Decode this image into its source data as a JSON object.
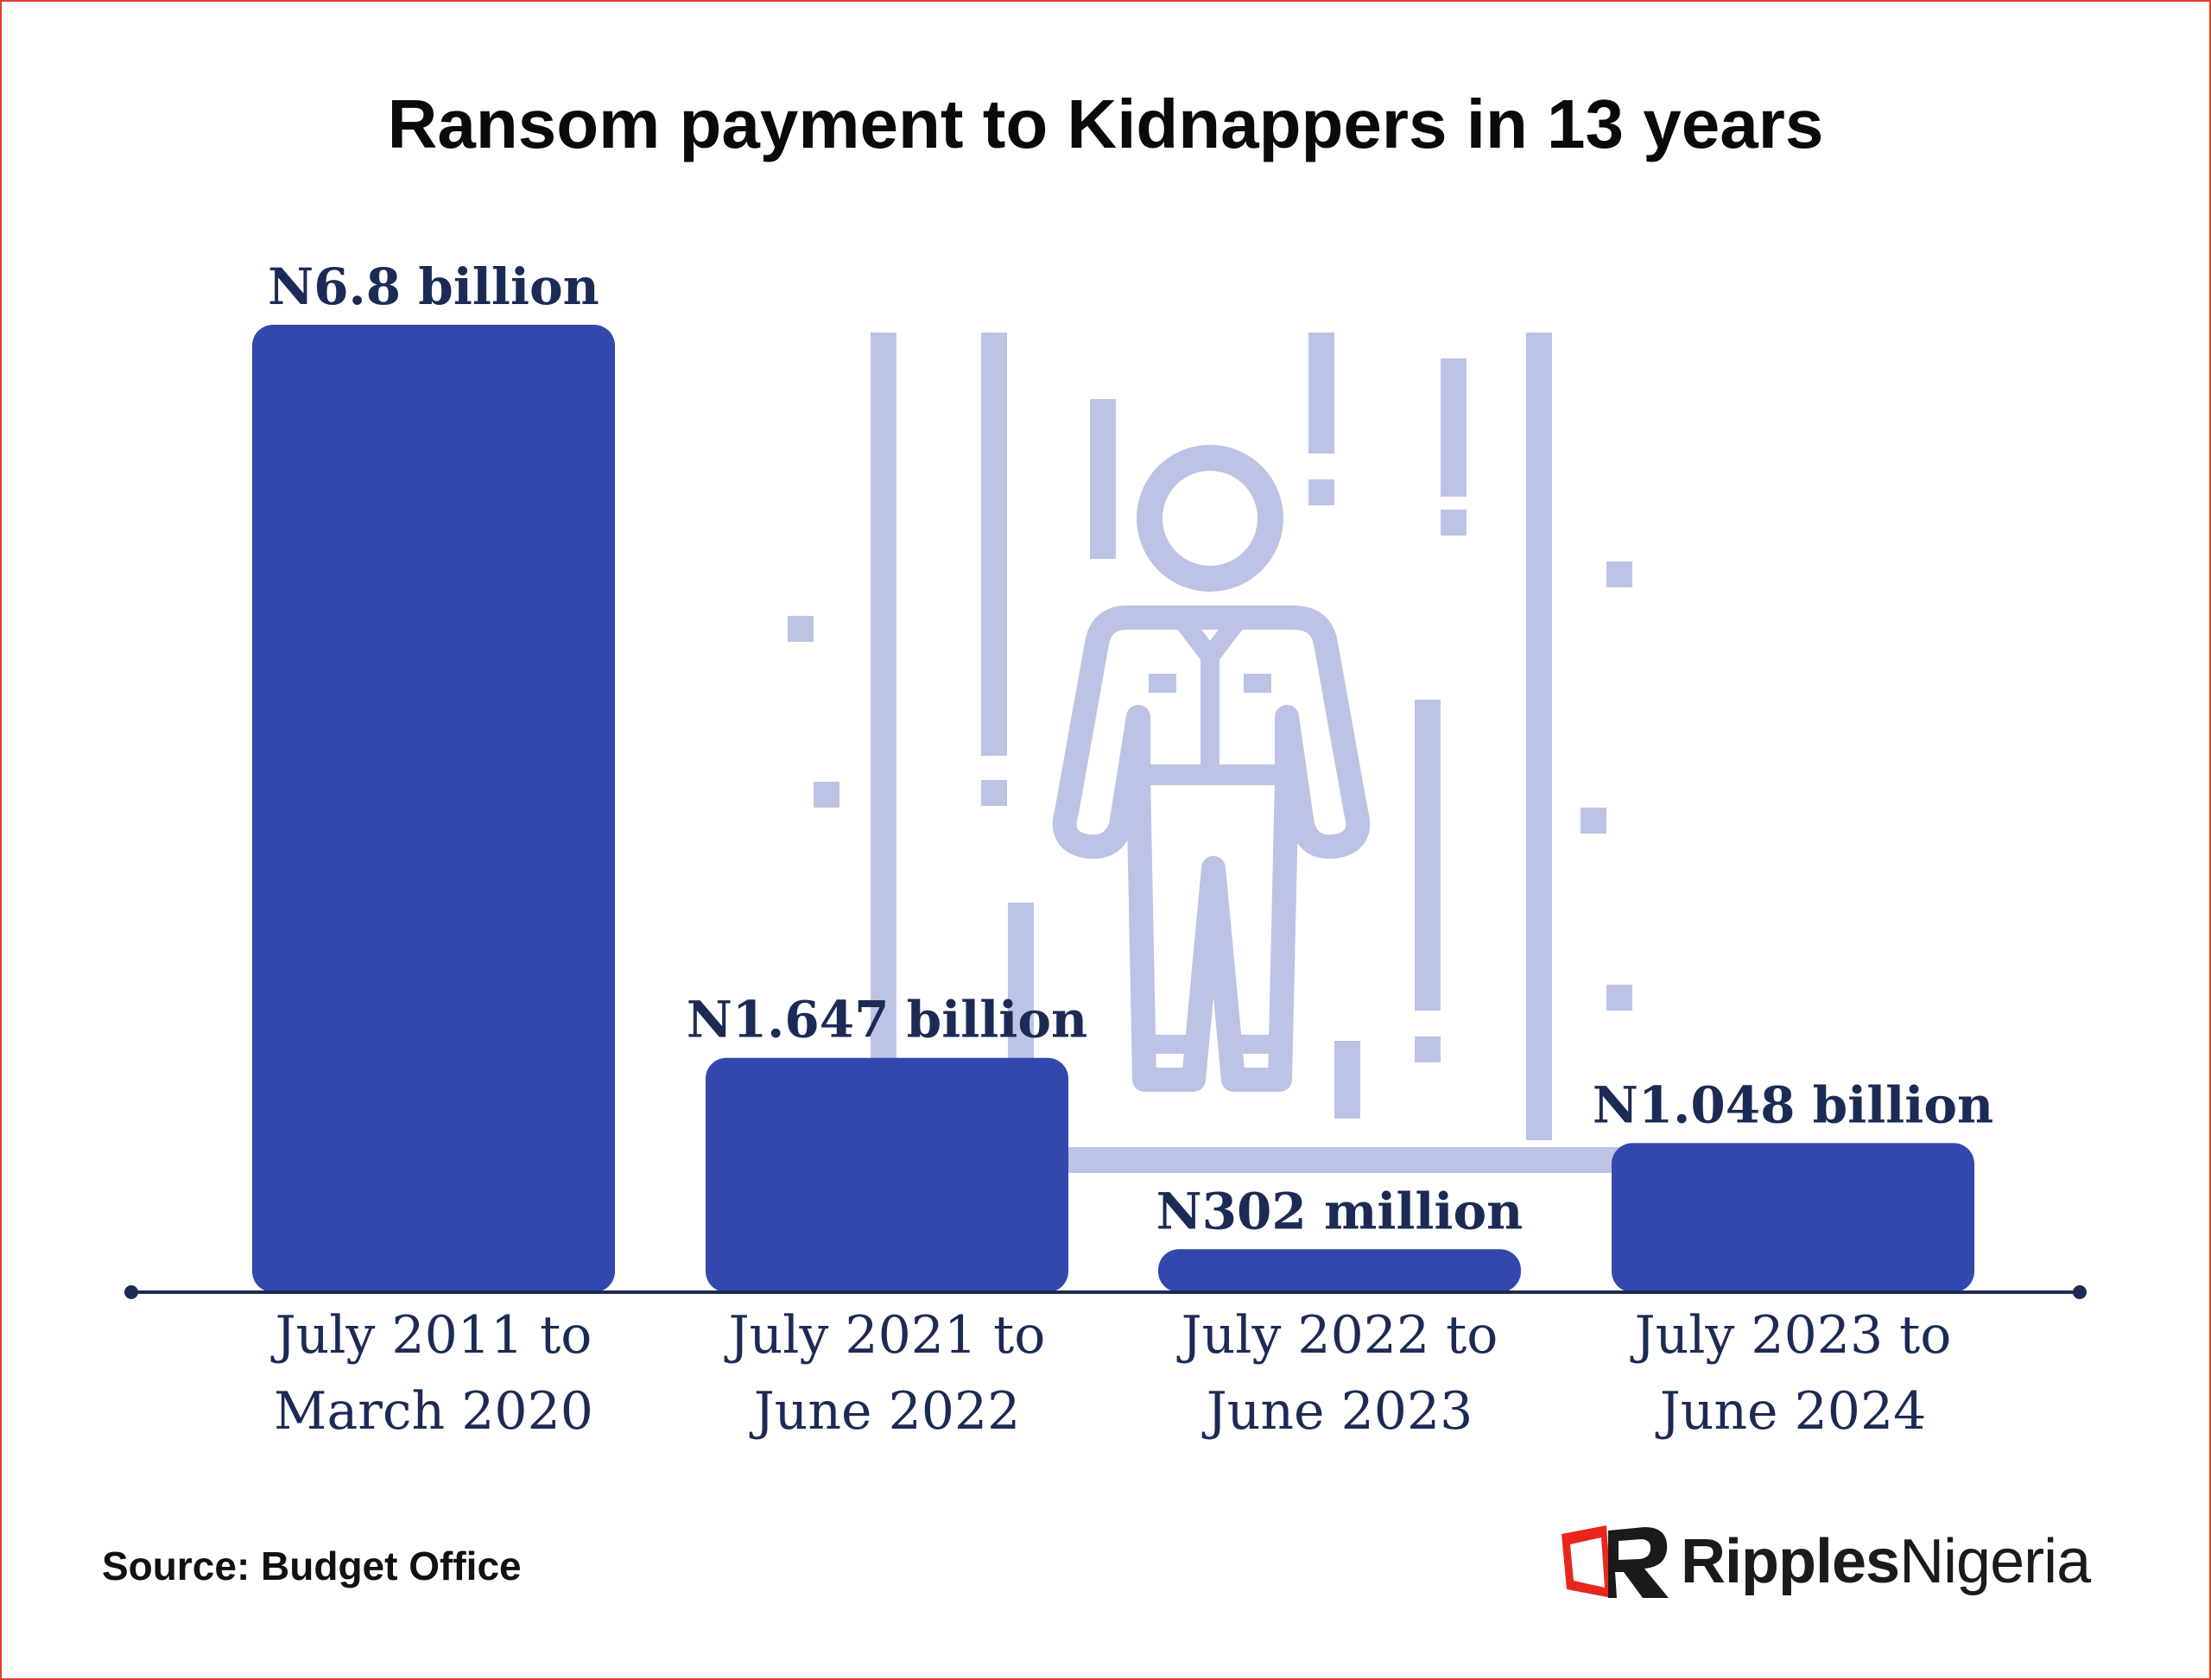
{
  "title": "Ransom payment to Kidnappers in 13 years",
  "source": "Source: Budget Office",
  "brand": {
    "bold": "Ripples",
    "regular": "Nigeria",
    "accent": "#e8261c"
  },
  "colors": {
    "bar": "#3347ad",
    "label": "#1c2b55",
    "axis": "#1c2b55",
    "illustration": "#bcc3e4"
  },
  "chart_data": {
    "type": "bar",
    "categories": [
      [
        "July 2011 to",
        "March 2020"
      ],
      [
        "July 2021 to",
        "June 2022"
      ],
      [
        "July 2022 to",
        "June 2023"
      ],
      [
        "July 2023 to",
        "June 2024"
      ]
    ],
    "values": [
      6.8,
      1.647,
      0.302,
      1.048
    ],
    "unit": "billion naira",
    "data_labels": [
      "N6.8 billion",
      "N1.647 billion",
      "N302 million",
      "N1.048 billion"
    ],
    "ylim": [
      0,
      6.8
    ],
    "grid": false,
    "legend": "none"
  }
}
